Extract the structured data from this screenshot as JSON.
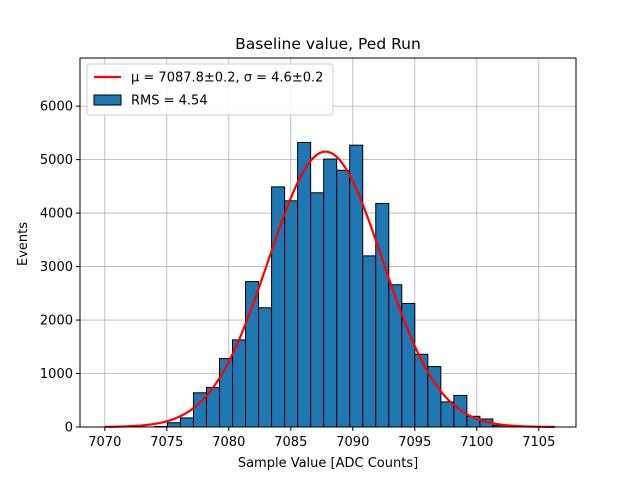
{
  "chart_data": {
    "type": "bar",
    "title": "Baseline value, Ped Run",
    "xlabel": "Sample Value [ADC Counts]",
    "ylabel": "Events",
    "xlim": [
      7068,
      7108
    ],
    "ylim": [
      0,
      6900
    ],
    "xticks": [
      7070,
      7075,
      7080,
      7085,
      7090,
      7095,
      7100,
      7105
    ],
    "yticks": [
      0,
      1000,
      2000,
      3000,
      4000,
      5000,
      6000
    ],
    "grid": true,
    "legend_position": "top-left",
    "bin_width": 1.05,
    "bins": [
      {
        "x": 7074.0,
        "count": 10
      },
      {
        "x": 7075.05,
        "count": 80
      },
      {
        "x": 7076.1,
        "count": 170
      },
      {
        "x": 7077.15,
        "count": 640
      },
      {
        "x": 7078.2,
        "count": 740
      },
      {
        "x": 7079.25,
        "count": 1280
      },
      {
        "x": 7080.3,
        "count": 1630
      },
      {
        "x": 7081.35,
        "count": 2720
      },
      {
        "x": 7082.4,
        "count": 2230
      },
      {
        "x": 7083.45,
        "count": 4490
      },
      {
        "x": 7084.5,
        "count": 4230
      },
      {
        "x": 7085.55,
        "count": 5320
      },
      {
        "x": 7086.6,
        "count": 4380
      },
      {
        "x": 7087.65,
        "count": 5010
      },
      {
        "x": 7088.7,
        "count": 4800
      },
      {
        "x": 7089.75,
        "count": 5270
      },
      {
        "x": 7090.8,
        "count": 3200
      },
      {
        "x": 7091.85,
        "count": 4180
      },
      {
        "x": 7092.9,
        "count": 2660
      },
      {
        "x": 7093.95,
        "count": 2310
      },
      {
        "x": 7095.0,
        "count": 1360
      },
      {
        "x": 7096.05,
        "count": 1130
      },
      {
        "x": 7097.1,
        "count": 470
      },
      {
        "x": 7098.15,
        "count": 590
      },
      {
        "x": 7099.2,
        "count": 200
      },
      {
        "x": 7100.25,
        "count": 150
      },
      {
        "x": 7101.3,
        "count": 30
      }
    ],
    "fit": {
      "mu": 7087.8,
      "sigma": 4.6,
      "amplitude": 5150,
      "x_range": [
        7070,
        7106.3
      ],
      "color": "#ff0000"
    },
    "bar_color": "#1f77b4",
    "legend": [
      {
        "label": "μ = 7087.8±0.2, σ = 4.6±0.2",
        "kind": "line",
        "color": "#ff0000"
      },
      {
        "label": "RMS = 4.54",
        "kind": "patch",
        "color": "#1f77b4"
      }
    ]
  }
}
